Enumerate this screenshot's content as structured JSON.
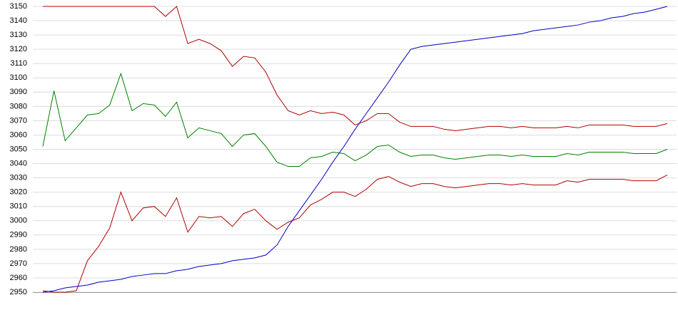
{
  "chart_data": {
    "type": "line",
    "categories": [
      null,
      null,
      null,
      null,
      null,
      null,
      null,
      null,
      null,
      null,
      null,
      null,
      null,
      null,
      null,
      null,
      null,
      null,
      null,
      null,
      null,
      null,
      null,
      null,
      null,
      null,
      null,
      null,
      null,
      null,
      null,
      null,
      null,
      null,
      null,
      null,
      null,
      null,
      null,
      null,
      null,
      null,
      null,
      null,
      null,
      null,
      null,
      null,
      null,
      null,
      null,
      null,
      null,
      null,
      null,
      null,
      null
    ],
    "series": [
      {
        "color": "#b00000",
        "values": [
          3150,
          3150,
          3150,
          3150,
          3150,
          3150,
          3150,
          3150,
          3150,
          3150,
          3150,
          3143,
          3150,
          3124,
          3127,
          3124,
          3119,
          3108,
          3115,
          3114,
          3104,
          3088,
          3077,
          3074,
          3077,
          3075,
          3076,
          3074,
          3067,
          3070,
          3075,
          3075,
          3069,
          3066,
          3066,
          3066,
          3064,
          3063,
          3064,
          3065,
          3066,
          3066,
          3065,
          3066,
          3065,
          3065,
          3065,
          3066,
          3065,
          3067,
          3067,
          3067,
          3067,
          3066,
          3066,
          3066,
          3068
        ]
      },
      {
        "color": "#008000",
        "values": [
          3052,
          3091,
          3056,
          3065,
          3074,
          3075,
          3081,
          3103,
          3077,
          3082,
          3081,
          3073,
          3083,
          3058,
          3065,
          3063,
          3061,
          3052,
          3060,
          3061,
          3052,
          3041,
          3038,
          3038,
          3044,
          3045,
          3048,
          3047,
          3042,
          3046,
          3052,
          3053,
          3048,
          3045,
          3046,
          3046,
          3044,
          3043,
          3044,
          3045,
          3046,
          3046,
          3045,
          3046,
          3045,
          3045,
          3045,
          3047,
          3046,
          3048,
          3048,
          3048,
          3048,
          3047,
          3047,
          3047,
          3050
        ]
      },
      {
        "color": "#b00000",
        "values": [
          2951,
          2950,
          2950,
          2951,
          2972,
          2982,
          2995,
          3020,
          3000,
          3009,
          3010,
          3003,
          3016,
          2992,
          3003,
          3002,
          3003,
          2996,
          3005,
          3008,
          3000,
          2994,
          2999,
          3002,
          3011,
          3015,
          3020,
          3020,
          3017,
          3022,
          3029,
          3031,
          3027,
          3024,
          3026,
          3026,
          3024,
          3023,
          3024,
          3025,
          3026,
          3026,
          3025,
          3026,
          3025,
          3025,
          3025,
          3028,
          3027,
          3029,
          3029,
          3029,
          3029,
          3028,
          3028,
          3028,
          3032
        ]
      },
      {
        "color": "#0000c0",
        "values": [
          2950,
          2951,
          2953,
          2954,
          2955,
          2957,
          2958,
          2959,
          2961,
          2962,
          2963,
          2963,
          2965,
          2966,
          2968,
          2969,
          2970,
          2972,
          2973,
          2974,
          2976,
          2983,
          2996,
          3007,
          3018,
          3029,
          3041,
          3052,
          3064,
          3075,
          3086,
          3097,
          3109,
          3120,
          3122,
          3123,
          3124,
          3125,
          3126,
          3127,
          3128,
          3129,
          3130,
          3131,
          3133,
          3134,
          3135,
          3136,
          3137,
          3139,
          3140,
          3142,
          3143,
          3145,
          3146,
          3148,
          3150
        ]
      }
    ],
    "ylim": [
      2950,
      3150
    ],
    "yticks": [
      2950,
      2960,
      2970,
      2980,
      2990,
      3000,
      3010,
      3020,
      3030,
      3040,
      3050,
      3060,
      3070,
      3080,
      3090,
      3100,
      3110,
      3120,
      3130,
      3140,
      3150
    ],
    "grid": true
  }
}
